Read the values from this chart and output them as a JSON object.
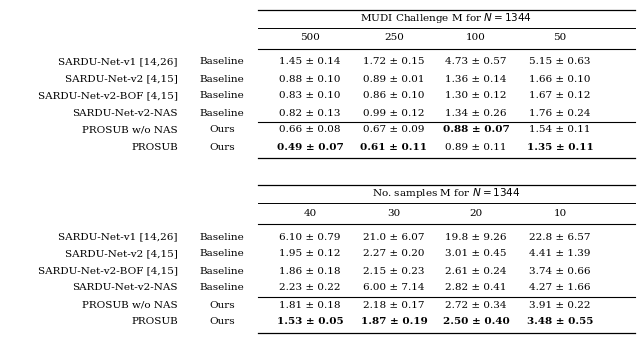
{
  "table1_header_span": "MUDI Challenge M for $N = 1344$",
  "table1_cols": [
    "500",
    "250",
    "100",
    "50"
  ],
  "table2_header_span": "No. samples M for $N = 1344$",
  "table2_cols": [
    "40",
    "30",
    "20",
    "10"
  ],
  "rows": [
    [
      "SARDU-Net-v1 [14,26]",
      "Baseline"
    ],
    [
      "SARDU-Net-v2 [4,15]",
      "Baseline"
    ],
    [
      "SARDU-Net-v2-BOF [4,15]",
      "Baseline"
    ],
    [
      "SARDU-Net-v2-NAS",
      "Baseline"
    ],
    [
      "PROSUB w/o NAS",
      "Ours"
    ],
    [
      "PROSUB",
      "Ours"
    ]
  ],
  "table1_data": [
    [
      "1.45 \\pm 0.14",
      "1.72 \\pm 0.15",
      "4.73 \\pm 0.57",
      "5.15 \\pm 0.63"
    ],
    [
      "0.88 \\pm 0.10",
      "0.89 \\pm 0.01",
      "1.36 \\pm 0.14",
      "1.66 \\pm 0.10"
    ],
    [
      "0.83 \\pm 0.10",
      "0.86 \\pm 0.10",
      "1.30 \\pm 0.12",
      "1.67 \\pm 0.12"
    ],
    [
      "0.82 \\pm 0.13",
      "0.99 \\pm 0.12",
      "1.34 \\pm 0.26",
      "1.76 \\pm 0.24"
    ],
    [
      "0.66 \\pm 0.08",
      "0.67 \\pm 0.09",
      "0.88 \\pm 0.07",
      "1.54 \\pm 0.11"
    ],
    [
      "0.49 \\pm 0.07",
      "0.61 \\pm 0.11",
      "0.89 \\pm 0.11",
      "1.35 \\pm 0.11"
    ]
  ],
  "table1_bold": [
    [
      false,
      false,
      false,
      false
    ],
    [
      false,
      false,
      false,
      false
    ],
    [
      false,
      false,
      false,
      false
    ],
    [
      false,
      false,
      false,
      false
    ],
    [
      false,
      false,
      true,
      false
    ],
    [
      true,
      true,
      false,
      true
    ]
  ],
  "table2_data": [
    [
      "6.10 \\pm 0.79",
      "21.0 \\pm 6.07",
      "19.8 \\pm 9.26",
      "22.8 \\pm 6.57"
    ],
    [
      "1.95 \\pm 0.12",
      "2.27 \\pm 0.20",
      "3.01 \\pm 0.45",
      "4.41 \\pm 1.39"
    ],
    [
      "1.86 \\pm 0.18",
      "2.15 \\pm 0.23",
      "2.61 \\pm 0.24",
      "3.74 \\pm 0.66"
    ],
    [
      "2.23 \\pm 0.22",
      "6.00 \\pm 7.14",
      "2.82 \\pm 0.41",
      "4.27 \\pm 1.66"
    ],
    [
      "1.81 \\pm 0.18",
      "2.18 \\pm 0.17",
      "2.72 \\pm 0.34",
      "3.91 \\pm 0.22"
    ],
    [
      "1.53 \\pm 0.05",
      "1.87 \\pm 0.19",
      "2.50 \\pm 0.40",
      "3.48 \\pm 0.55"
    ]
  ],
  "table2_bold": [
    [
      false,
      false,
      false,
      false
    ],
    [
      false,
      false,
      false,
      false
    ],
    [
      false,
      false,
      false,
      false
    ],
    [
      false,
      false,
      false,
      false
    ],
    [
      false,
      false,
      false,
      false
    ],
    [
      true,
      true,
      true,
      true
    ]
  ],
  "fs": 7.5,
  "bg": "#ffffff"
}
